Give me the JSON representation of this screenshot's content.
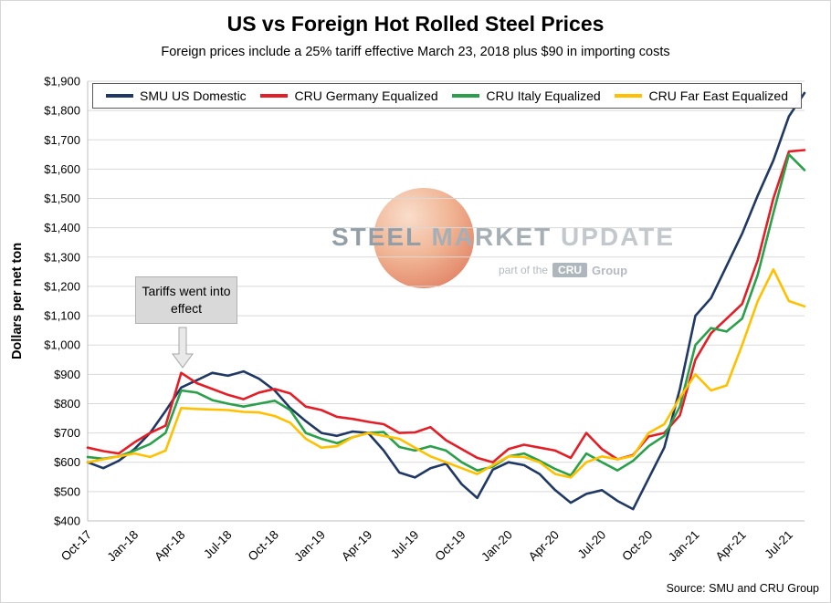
{
  "title": "US vs Foreign Hot Rolled Steel Prices",
  "subtitle": "Foreign prices include a 25% tariff effective March 23, 2018 plus $90 in importing costs",
  "source": "Source: SMU and CRU Group",
  "annotation": {
    "text": "Tariffs went into effect"
  },
  "watermark": {
    "word1": "STEEL",
    "word2": "MARKET",
    "word3": "UPDATE",
    "tagline_prefix": "part of the",
    "tagline_brand": "CRU",
    "tagline_suffix": "Group"
  },
  "chart_data": {
    "type": "line",
    "title": "US vs Foreign Hot Rolled Steel Prices",
    "xlabel": "",
    "ylabel": "Dollars per net ton",
    "ylim": [
      400,
      1900
    ],
    "y_tick_step": 100,
    "y_tick_prefix": "$",
    "grid": true,
    "legend_position": "top",
    "x": [
      "Oct-17",
      "Nov-17",
      "Dec-17",
      "Jan-18",
      "Feb-18",
      "Mar-18",
      "Apr-18",
      "May-18",
      "Jun-18",
      "Jul-18",
      "Aug-18",
      "Sep-18",
      "Oct-18",
      "Nov-18",
      "Dec-18",
      "Jan-19",
      "Feb-19",
      "Mar-19",
      "Apr-19",
      "May-19",
      "Jun-19",
      "Jul-19",
      "Aug-19",
      "Sep-19",
      "Oct-19",
      "Nov-19",
      "Dec-19",
      "Jan-20",
      "Feb-20",
      "Mar-20",
      "Apr-20",
      "May-20",
      "Jun-20",
      "Jul-20",
      "Aug-20",
      "Sep-20",
      "Oct-20",
      "Nov-20",
      "Dec-20",
      "Jan-21",
      "Feb-21",
      "Mar-21",
      "Apr-21",
      "May-21",
      "Jun-21",
      "Jul-21",
      "Aug-21"
    ],
    "x_tick_indices": [
      0,
      3,
      6,
      9,
      12,
      15,
      18,
      21,
      24,
      27,
      30,
      33,
      36,
      39,
      42,
      45
    ],
    "series": [
      {
        "name": "SMU US Domestic",
        "color": "#1f3864",
        "values": [
          600,
          580,
          605,
          645,
          700,
          775,
          855,
          880,
          905,
          895,
          910,
          885,
          845,
          785,
          740,
          700,
          690,
          705,
          700,
          640,
          565,
          548,
          580,
          595,
          525,
          478,
          575,
          600,
          590,
          560,
          505,
          462,
          492,
          505,
          468,
          440,
          545,
          650,
          850,
          1100,
          1160,
          1270,
          1380,
          1510,
          1630,
          1780,
          1860
        ]
      },
      {
        "name": "CRU Germany Equalized",
        "color": "#e31e26",
        "values": [
          650,
          638,
          630,
          668,
          700,
          725,
          905,
          870,
          850,
          830,
          815,
          838,
          850,
          835,
          790,
          778,
          755,
          748,
          738,
          730,
          700,
          702,
          720,
          675,
          645,
          615,
          600,
          645,
          660,
          650,
          640,
          615,
          700,
          645,
          610,
          625,
          688,
          700,
          760,
          950,
          1040,
          1090,
          1140,
          1290,
          1500,
          1660,
          1665
        ]
      },
      {
        "name": "CRU Italy Equalized",
        "color": "#2aa04a",
        "values": [
          618,
          612,
          620,
          640,
          662,
          700,
          845,
          838,
          812,
          800,
          790,
          800,
          810,
          778,
          700,
          680,
          665,
          685,
          700,
          703,
          652,
          640,
          655,
          640,
          600,
          572,
          585,
          620,
          630,
          605,
          577,
          555,
          630,
          600,
          572,
          605,
          655,
          690,
          790,
          1000,
          1058,
          1046,
          1090,
          1240,
          1450,
          1650,
          1597
        ]
      },
      {
        "name": "CRU Far East Equalized",
        "color": "#ffc000",
        "values": [
          600,
          610,
          620,
          630,
          618,
          640,
          785,
          782,
          780,
          778,
          772,
          770,
          758,
          735,
          680,
          650,
          655,
          685,
          700,
          690,
          680,
          650,
          620,
          600,
          580,
          560,
          590,
          620,
          618,
          600,
          560,
          548,
          600,
          620,
          610,
          622,
          700,
          730,
          820,
          900,
          845,
          862,
          1000,
          1150,
          1258,
          1150,
          1132
        ]
      }
    ],
    "annotation": {
      "text": "Tariffs went into effect",
      "points_to_x": "Apr-18"
    }
  }
}
